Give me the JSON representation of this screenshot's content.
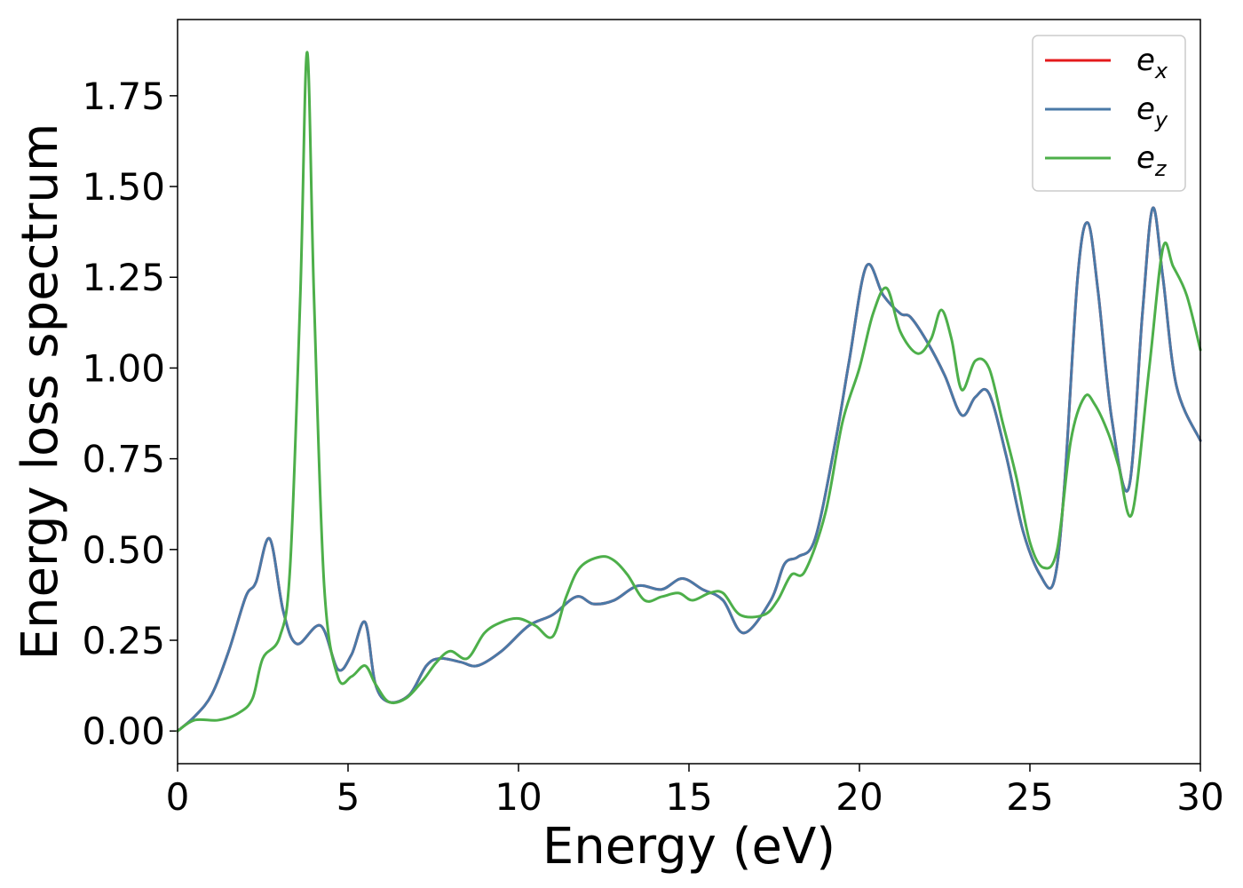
{
  "chart_data": {
    "type": "line",
    "xlabel": "Energy (eV)",
    "ylabel": "Energy loss spectrum",
    "xlim": [
      0,
      30
    ],
    "ylim": [
      -0.09,
      1.96
    ],
    "xticks": [
      0,
      5,
      10,
      15,
      20,
      25,
      30
    ],
    "xtick_labels": [
      "0",
      "5",
      "10",
      "15",
      "20",
      "25",
      "30"
    ],
    "yticks": [
      0.0,
      0.25,
      0.5,
      0.75,
      1.0,
      1.25,
      1.5,
      1.75
    ],
    "ytick_labels": [
      "0.00",
      "0.25",
      "0.50",
      "0.75",
      "1.00",
      "1.25",
      "1.50",
      "1.75"
    ],
    "grid": false,
    "legend_position": "top-right",
    "series": [
      {
        "name": "e_x",
        "label_base": "e",
        "label_sub": "x",
        "color": "#e41a1c",
        "x": [
          0,
          0.5,
          1,
          1.5,
          2,
          2.3,
          2.7,
          3.1,
          3.5,
          4.2,
          4.7,
          5.1,
          5.5,
          5.8,
          6.2,
          6.8,
          7.3,
          7.7,
          8.3,
          8.8,
          9.5,
          10.3,
          11,
          11.7,
          12.2,
          12.8,
          13.5,
          14.2,
          14.8,
          15.4,
          16,
          16.6,
          17.4,
          17.8,
          18.2,
          18.7,
          19.3,
          19.7,
          20.2,
          20.7,
          21.2,
          21.5,
          22,
          22.5,
          23,
          23.4,
          23.8,
          24.3,
          24.8,
          25.3,
          25.7,
          26,
          26.4,
          26.7,
          27,
          27.4,
          27.9,
          28.3,
          28.6,
          28.9,
          29.3,
          30
        ],
        "values": [
          0,
          0.04,
          0.1,
          0.22,
          0.37,
          0.41,
          0.53,
          0.33,
          0.24,
          0.29,
          0.17,
          0.21,
          0.3,
          0.13,
          0.08,
          0.1,
          0.18,
          0.2,
          0.19,
          0.18,
          0.22,
          0.29,
          0.32,
          0.37,
          0.35,
          0.36,
          0.4,
          0.39,
          0.42,
          0.39,
          0.36,
          0.27,
          0.36,
          0.46,
          0.48,
          0.53,
          0.8,
          1.02,
          1.28,
          1.2,
          1.15,
          1.14,
          1.07,
          0.98,
          0.87,
          0.92,
          0.93,
          0.76,
          0.55,
          0.43,
          0.41,
          0.66,
          1.25,
          1.4,
          1.21,
          0.86,
          0.67,
          1.15,
          1.44,
          1.25,
          0.95,
          0.8
        ]
      },
      {
        "name": "e_y",
        "label_base": "e",
        "label_sub": "y",
        "color": "#4a79a7",
        "x": [
          0,
          0.5,
          1,
          1.5,
          2,
          2.3,
          2.7,
          3.1,
          3.5,
          4.2,
          4.7,
          5.1,
          5.5,
          5.8,
          6.2,
          6.8,
          7.3,
          7.7,
          8.3,
          8.8,
          9.5,
          10.3,
          11,
          11.7,
          12.2,
          12.8,
          13.5,
          14.2,
          14.8,
          15.4,
          16,
          16.6,
          17.4,
          17.8,
          18.2,
          18.7,
          19.3,
          19.7,
          20.2,
          20.7,
          21.2,
          21.5,
          22,
          22.5,
          23,
          23.4,
          23.8,
          24.3,
          24.8,
          25.3,
          25.7,
          26,
          26.4,
          26.7,
          27,
          27.4,
          27.9,
          28.3,
          28.6,
          28.9,
          29.3,
          30
        ],
        "values": [
          0,
          0.04,
          0.1,
          0.22,
          0.37,
          0.41,
          0.53,
          0.33,
          0.24,
          0.29,
          0.17,
          0.21,
          0.3,
          0.13,
          0.08,
          0.1,
          0.18,
          0.2,
          0.19,
          0.18,
          0.22,
          0.29,
          0.32,
          0.37,
          0.35,
          0.36,
          0.4,
          0.39,
          0.42,
          0.39,
          0.36,
          0.27,
          0.36,
          0.46,
          0.48,
          0.53,
          0.8,
          1.02,
          1.28,
          1.2,
          1.15,
          1.14,
          1.07,
          0.98,
          0.87,
          0.92,
          0.93,
          0.76,
          0.55,
          0.43,
          0.41,
          0.66,
          1.25,
          1.4,
          1.21,
          0.86,
          0.67,
          1.15,
          1.44,
          1.25,
          0.95,
          0.8
        ]
      },
      {
        "name": "e_z",
        "label_base": "e",
        "label_sub": "z",
        "color": "#4daf4a",
        "x": [
          0,
          0.5,
          1.2,
          1.8,
          2.2,
          2.5,
          3,
          3.3,
          3.6,
          3.8,
          4.0,
          4.3,
          4.7,
          5.1,
          5.5,
          5.8,
          6.2,
          6.7,
          7.2,
          7.6,
          8,
          8.5,
          9,
          9.5,
          10,
          10.5,
          11,
          11.4,
          11.8,
          12.4,
          12.8,
          13.2,
          13.7,
          14.2,
          14.7,
          15.1,
          15.6,
          16,
          16.5,
          17.2,
          17.6,
          18,
          18.4,
          19,
          19.5,
          20,
          20.4,
          20.8,
          21.2,
          21.7,
          22.1,
          22.4,
          22.7,
          23,
          23.4,
          23.8,
          24.2,
          24.6,
          25,
          25.4,
          25.8,
          26.2,
          26.6,
          26.9,
          27.3,
          27.6,
          28,
          28.5,
          28.9,
          29.2,
          29.6,
          30
        ],
        "values": [
          0,
          0.03,
          0.03,
          0.05,
          0.09,
          0.2,
          0.26,
          0.45,
          1.2,
          1.87,
          1.2,
          0.4,
          0.15,
          0.15,
          0.18,
          0.13,
          0.08,
          0.09,
          0.14,
          0.19,
          0.22,
          0.2,
          0.27,
          0.3,
          0.31,
          0.29,
          0.26,
          0.37,
          0.45,
          0.48,
          0.47,
          0.43,
          0.36,
          0.37,
          0.38,
          0.36,
          0.38,
          0.38,
          0.32,
          0.32,
          0.36,
          0.43,
          0.44,
          0.6,
          0.85,
          1.0,
          1.15,
          1.22,
          1.1,
          1.04,
          1.08,
          1.16,
          1.08,
          0.94,
          1.02,
          1.0,
          0.85,
          0.7,
          0.52,
          0.45,
          0.5,
          0.8,
          0.92,
          0.9,
          0.82,
          0.73,
          0.6,
          1.0,
          1.33,
          1.28,
          1.2,
          1.05
        ]
      }
    ]
  }
}
